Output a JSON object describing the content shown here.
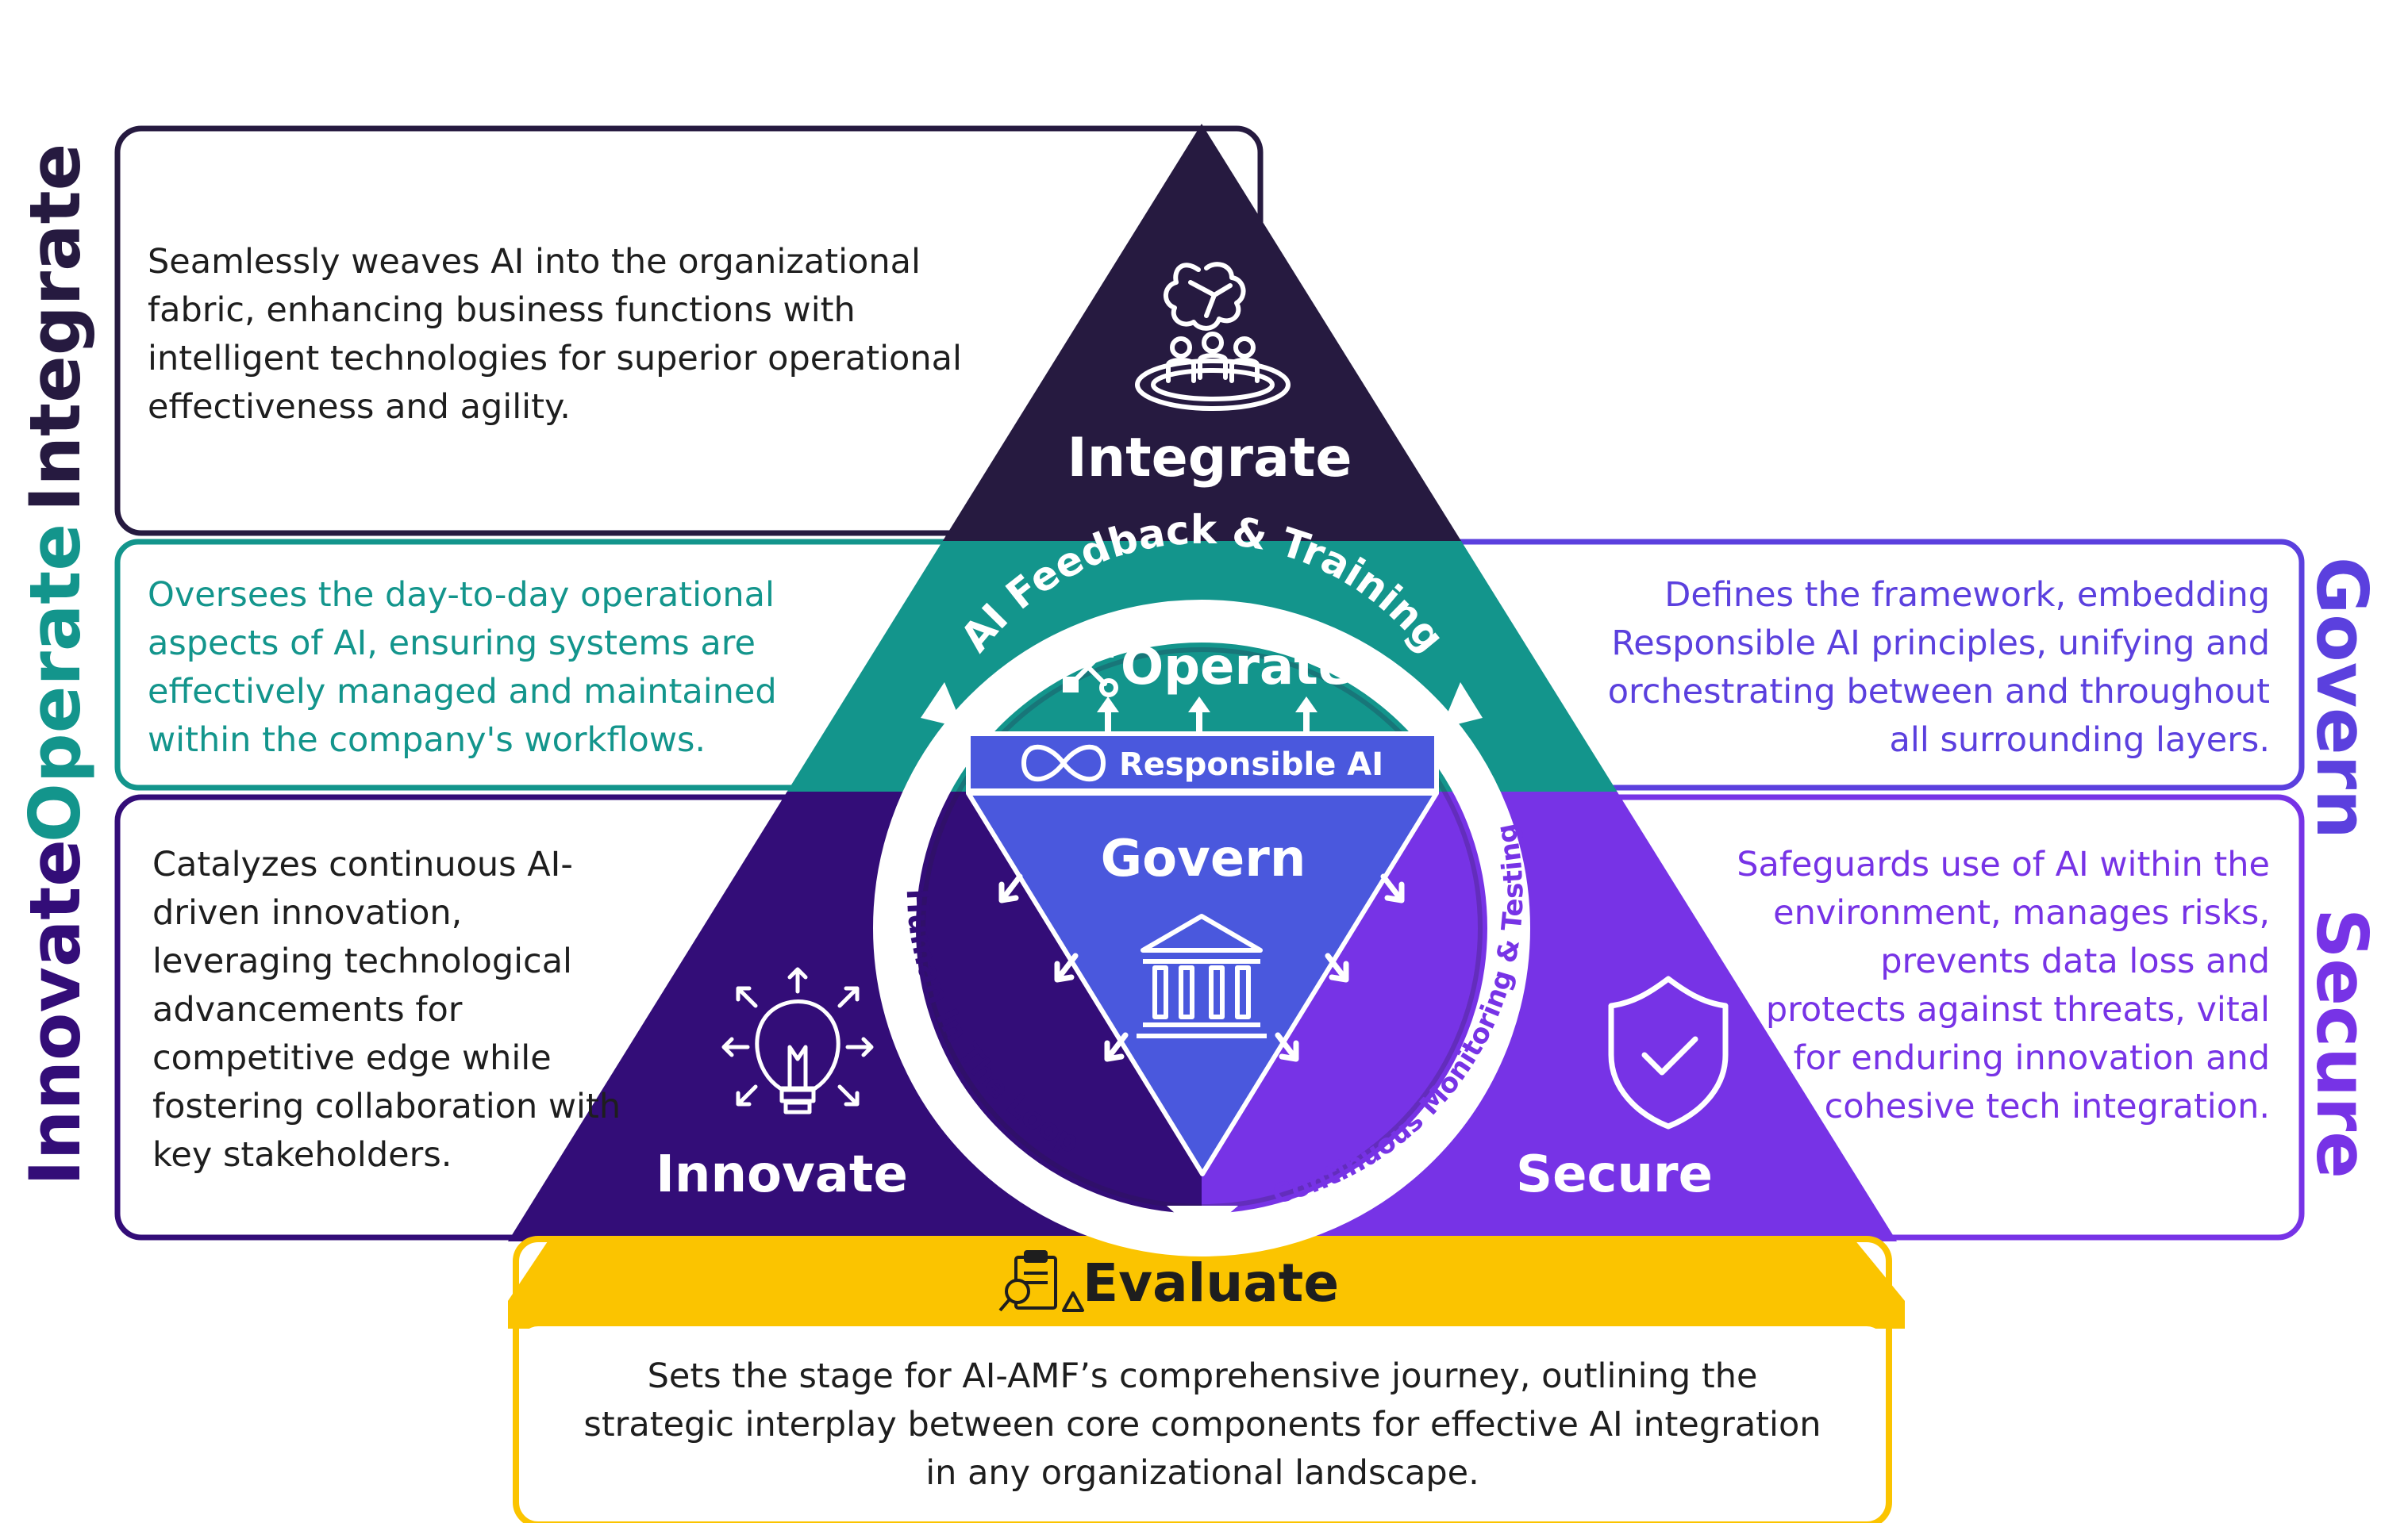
{
  "colors": {
    "integrate": "#261a40",
    "operate": "#13958c",
    "govern": "#4a58dd",
    "innovate": "#330d78",
    "secure": "#7733e6",
    "evaluate": "#fbc400",
    "side_govern": "#5b40de",
    "text_dark": "#1e1e1e",
    "white": "#ffffff"
  },
  "integrate": {
    "side_label": "Integrate",
    "title": "Integrate",
    "icon": "brain-team-icon",
    "description": "Seamlessly weaves AI into the organizational fabric, enhancing business functions with intelligent technologies for superior operational effectiveness and agility."
  },
  "operate": {
    "side_label": "Operate",
    "title": "Operate",
    "icon": "tools-icon",
    "description": "Oversees the day-to-day operational aspects of AI, ensuring systems are effectively managed and maintained within the company's workflows."
  },
  "govern": {
    "side_label": "Govern",
    "title": "Govern",
    "icon": "courthouse-icon",
    "description": "Defines the framework, embedding Responsible AI principles, unifying and orchestrating between and throughout all surrounding layers."
  },
  "innovate": {
    "side_label": "Innovate",
    "title": "Innovate",
    "icon": "lightbulb-icon",
    "description": "Catalyzes continuous AI-driven innovation, leveraging technological advancements for competitive edge while fostering collaboration with key stakeholders."
  },
  "secure": {
    "side_label": "Secure",
    "title": "Secure",
    "icon": "shield-check-icon",
    "description": "Safeguards use of AI within the environment, manages risks, prevents data loss and protects against threats, vital for enduring innovation and cohesive tech integration."
  },
  "evaluate": {
    "title": "Evaluate",
    "icon": "evaluation-clipboard-icon",
    "description": "Sets the stage for AI-AMF’s comprehensive journey, outlining the strategic interplay between core components for effective AI integration in any organizational landscape."
  },
  "responsible_ai": {
    "label": "Responsible AI",
    "icon": "infinity-icon"
  },
  "loop": {
    "feedback": "AI Feedback & Training",
    "human": "Human In The Loop",
    "monitoring": "Continuous Monitoring & Testing"
  }
}
